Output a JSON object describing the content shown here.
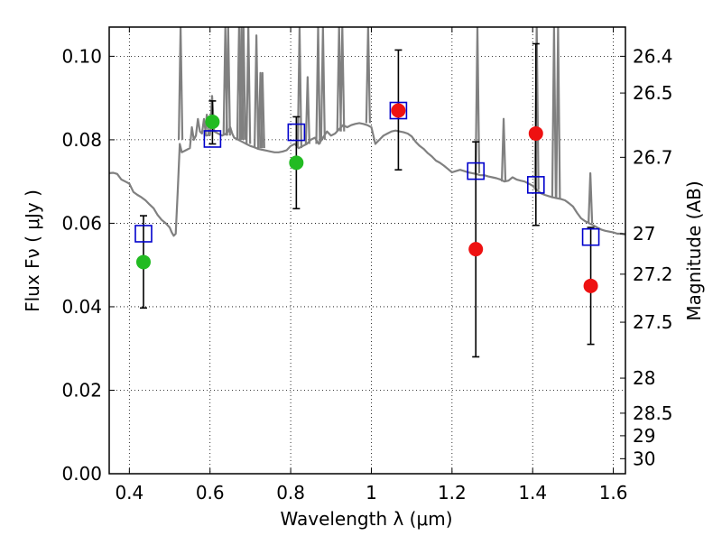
{
  "chart_data": {
    "type": "scatter",
    "title": "",
    "xlabel": "Wavelength  λ (μm)",
    "ylabel": "Flux  Fν  ( μJy )",
    "ylabel_right": "Magnitude (AB)",
    "xlim": [
      0.35,
      1.63
    ],
    "ylim": [
      0,
      0.107
    ],
    "grid": true,
    "x_ticks": [
      0.4,
      0.6,
      0.8,
      1.0,
      1.2,
      1.4,
      1.6
    ],
    "x_tick_labels": [
      "0.4",
      "0.6",
      "0.8",
      "1",
      "1.2",
      "1.4",
      "1.6"
    ],
    "y_ticks": [
      0.0,
      0.02,
      0.04,
      0.06,
      0.08,
      0.1
    ],
    "y_tick_labels": [
      "0.00",
      "0.02",
      "0.04",
      "0.06",
      "0.08",
      "0.10"
    ],
    "right_ticks": [
      {
        "label": "26.4",
        "flux": 0.1
      },
      {
        "label": "26.5",
        "flux": 0.0912
      },
      {
        "label": "26.7",
        "flux": 0.0758
      },
      {
        "label": "27",
        "flux": 0.0575
      },
      {
        "label": "27.2",
        "flux": 0.0478
      },
      {
        "label": "27.5",
        "flux": 0.0363
      },
      {
        "label": "28",
        "flux": 0.0229
      },
      {
        "label": "28.5",
        "flux": 0.0145
      },
      {
        "label": "29",
        "flux": 0.0091
      },
      {
        "label": "30",
        "flux": 0.0036
      }
    ],
    "series": [
      {
        "kind": "sed_model",
        "color": "#808080",
        "points": [
          [
            0.35,
            0.072
          ],
          [
            0.36,
            0.0721
          ],
          [
            0.37,
            0.0718
          ],
          [
            0.38,
            0.0705
          ],
          [
            0.39,
            0.07
          ],
          [
            0.4,
            0.0695
          ],
          [
            0.41,
            0.0675
          ],
          [
            0.42,
            0.0668
          ],
          [
            0.43,
            0.0662
          ],
          [
            0.44,
            0.0655
          ],
          [
            0.45,
            0.0645
          ],
          [
            0.46,
            0.0636
          ],
          [
            0.47,
            0.062
          ],
          [
            0.48,
            0.0608
          ],
          [
            0.49,
            0.06
          ],
          [
            0.5,
            0.059
          ],
          [
            0.505,
            0.0578
          ],
          [
            0.51,
            0.057
          ],
          [
            0.515,
            0.0575
          ],
          [
            0.52,
            0.068
          ],
          [
            0.525,
            0.079
          ],
          [
            0.53,
            0.077
          ],
          [
            0.54,
            0.0775
          ],
          [
            0.55,
            0.078
          ],
          [
            0.555,
            0.083
          ],
          [
            0.56,
            0.08
          ],
          [
            0.565,
            0.081
          ],
          [
            0.57,
            0.085
          ],
          [
            0.575,
            0.082
          ],
          [
            0.58,
            0.0815
          ],
          [
            0.585,
            0.085
          ],
          [
            0.59,
            0.081
          ],
          [
            0.6,
            0.0812
          ],
          [
            0.605,
            0.0905
          ],
          [
            0.61,
            0.082
          ],
          [
            0.62,
            0.0815
          ],
          [
            0.63,
            0.081
          ],
          [
            0.64,
            0.0815
          ],
          [
            0.645,
            0.082
          ],
          [
            0.65,
            0.083
          ],
          [
            0.655,
            0.0815
          ],
          [
            0.66,
            0.0805
          ],
          [
            0.67,
            0.08
          ],
          [
            0.68,
            0.0795
          ],
          [
            0.69,
            0.079
          ],
          [
            0.7,
            0.0785
          ],
          [
            0.71,
            0.0782
          ],
          [
            0.72,
            0.0778
          ],
          [
            0.73,
            0.0776
          ],
          [
            0.74,
            0.0774
          ],
          [
            0.75,
            0.0772
          ],
          [
            0.76,
            0.077
          ],
          [
            0.77,
            0.077
          ],
          [
            0.78,
            0.0772
          ],
          [
            0.79,
            0.0775
          ],
          [
            0.8,
            0.0785
          ],
          [
            0.81,
            0.079
          ],
          [
            0.82,
            0.078
          ],
          [
            0.83,
            0.0785
          ],
          [
            0.84,
            0.079
          ],
          [
            0.85,
            0.08
          ],
          [
            0.86,
            0.0805
          ],
          [
            0.87,
            0.079
          ],
          [
            0.88,
            0.0805
          ],
          [
            0.89,
            0.082
          ],
          [
            0.9,
            0.081
          ],
          [
            0.91,
            0.0815
          ],
          [
            0.92,
            0.0825
          ],
          [
            0.93,
            0.0835
          ],
          [
            0.94,
            0.083
          ],
          [
            0.95,
            0.0835
          ],
          [
            0.96,
            0.0838
          ],
          [
            0.97,
            0.084
          ],
          [
            0.98,
            0.0838
          ],
          [
            0.99,
            0.0835
          ],
          [
            1.0,
            0.083
          ],
          [
            1.01,
            0.079
          ],
          [
            1.02,
            0.08
          ],
          [
            1.03,
            0.081
          ],
          [
            1.04,
            0.0815
          ],
          [
            1.05,
            0.082
          ],
          [
            1.06,
            0.0822
          ],
          [
            1.07,
            0.082
          ],
          [
            1.08,
            0.0818
          ],
          [
            1.09,
            0.0815
          ],
          [
            1.1,
            0.0808
          ],
          [
            1.11,
            0.0795
          ],
          [
            1.12,
            0.0785
          ],
          [
            1.13,
            0.0778
          ],
          [
            1.14,
            0.0768
          ],
          [
            1.15,
            0.076
          ],
          [
            1.16,
            0.075
          ],
          [
            1.17,
            0.0745
          ],
          [
            1.18,
            0.0738
          ],
          [
            1.19,
            0.073
          ],
          [
            1.2,
            0.0722
          ],
          [
            1.21,
            0.0725
          ],
          [
            1.22,
            0.0728
          ],
          [
            1.23,
            0.0725
          ],
          [
            1.24,
            0.0722
          ],
          [
            1.25,
            0.072
          ],
          [
            1.26,
            0.0718
          ],
          [
            1.27,
            0.0715
          ],
          [
            1.28,
            0.0715
          ],
          [
            1.29,
            0.0712
          ],
          [
            1.3,
            0.071
          ],
          [
            1.31,
            0.0708
          ],
          [
            1.32,
            0.0705
          ],
          [
            1.33,
            0.07
          ],
          [
            1.34,
            0.0702
          ],
          [
            1.35,
            0.071
          ],
          [
            1.36,
            0.0705
          ],
          [
            1.37,
            0.0702
          ],
          [
            1.38,
            0.07
          ],
          [
            1.39,
            0.0695
          ],
          [
            1.4,
            0.069
          ],
          [
            1.41,
            0.068
          ],
          [
            1.42,
            0.0672
          ],
          [
            1.43,
            0.0668
          ],
          [
            1.44,
            0.0665
          ],
          [
            1.45,
            0.0662
          ],
          [
            1.46,
            0.066
          ],
          [
            1.47,
            0.0658
          ],
          [
            1.48,
            0.0655
          ],
          [
            1.49,
            0.0648
          ],
          [
            1.5,
            0.064
          ],
          [
            1.51,
            0.0625
          ],
          [
            1.52,
            0.0612
          ],
          [
            1.53,
            0.0605
          ],
          [
            1.54,
            0.06
          ],
          [
            1.55,
            0.0595
          ],
          [
            1.56,
            0.059
          ],
          [
            1.57,
            0.0585
          ],
          [
            1.58,
            0.0582
          ],
          [
            1.59,
            0.058
          ],
          [
            1.6,
            0.0578
          ],
          [
            1.61,
            0.0575
          ],
          [
            1.62,
            0.0575
          ],
          [
            1.63,
            0.0573
          ]
        ]
      },
      {
        "kind": "emission_lines",
        "color": "#808080",
        "lines": [
          {
            "x": 0.527,
            "base": 0.08,
            "peak": 0.107
          },
          {
            "x": 0.592,
            "base": 0.081,
            "peak": 0.086
          },
          {
            "x": 0.638,
            "base": 0.081,
            "peak": 0.107
          },
          {
            "x": 0.645,
            "base": 0.081,
            "peak": 0.107
          },
          {
            "x": 0.672,
            "base": 0.08,
            "peak": 0.107
          },
          {
            "x": 0.678,
            "base": 0.08,
            "peak": 0.107
          },
          {
            "x": 0.683,
            "base": 0.08,
            "peak": 0.107
          },
          {
            "x": 0.695,
            "base": 0.079,
            "peak": 0.107
          },
          {
            "x": 0.715,
            "base": 0.078,
            "peak": 0.105
          },
          {
            "x": 0.725,
            "base": 0.078,
            "peak": 0.096
          },
          {
            "x": 0.73,
            "base": 0.078,
            "peak": 0.096
          },
          {
            "x": 0.822,
            "base": 0.078,
            "peak": 0.107
          },
          {
            "x": 0.842,
            "base": 0.079,
            "peak": 0.095
          },
          {
            "x": 0.868,
            "base": 0.079,
            "peak": 0.107
          },
          {
            "x": 0.88,
            "base": 0.08,
            "peak": 0.107
          },
          {
            "x": 0.92,
            "base": 0.082,
            "peak": 0.107
          },
          {
            "x": 0.928,
            "base": 0.082,
            "peak": 0.107
          },
          {
            "x": 0.992,
            "base": 0.084,
            "peak": 0.107
          },
          {
            "x": 1.263,
            "base": 0.072,
            "peak": 0.107
          },
          {
            "x": 1.328,
            "base": 0.07,
            "peak": 0.085
          },
          {
            "x": 1.41,
            "base": 0.068,
            "peak": 0.107
          },
          {
            "x": 1.453,
            "base": 0.066,
            "peak": 0.107
          },
          {
            "x": 1.463,
            "base": 0.066,
            "peak": 0.107
          },
          {
            "x": 1.543,
            "base": 0.06,
            "peak": 0.072
          }
        ]
      },
      {
        "kind": "model_photometry",
        "marker": "open-square",
        "color": "#0000cc",
        "x": [
          0.435,
          0.606,
          0.814,
          1.067,
          1.259,
          1.408,
          1.544
        ],
        "y": [
          0.0575,
          0.0802,
          0.0818,
          0.087,
          0.0725,
          0.0692,
          0.0567
        ]
      },
      {
        "kind": "observed",
        "marker": "filled-circle",
        "color": "#22bb22",
        "x": [
          0.435,
          0.606,
          0.814
        ],
        "y": [
          0.0507,
          0.0843,
          0.0745
        ],
        "err_low": [
          0.0397,
          0.079,
          0.0635
        ],
        "err_high": [
          0.0618,
          0.0893,
          0.0855
        ]
      },
      {
        "kind": "observed",
        "marker": "filled-circle",
        "color": "#ee1111",
        "x": [
          1.067,
          1.259,
          1.408,
          1.544
        ],
        "y": [
          0.087,
          0.0538,
          0.0815,
          0.045
        ],
        "err_low": [
          0.0728,
          0.028,
          0.0595,
          0.031
        ],
        "err_high": [
          0.1015,
          0.0795,
          0.103,
          0.059
        ]
      }
    ]
  }
}
